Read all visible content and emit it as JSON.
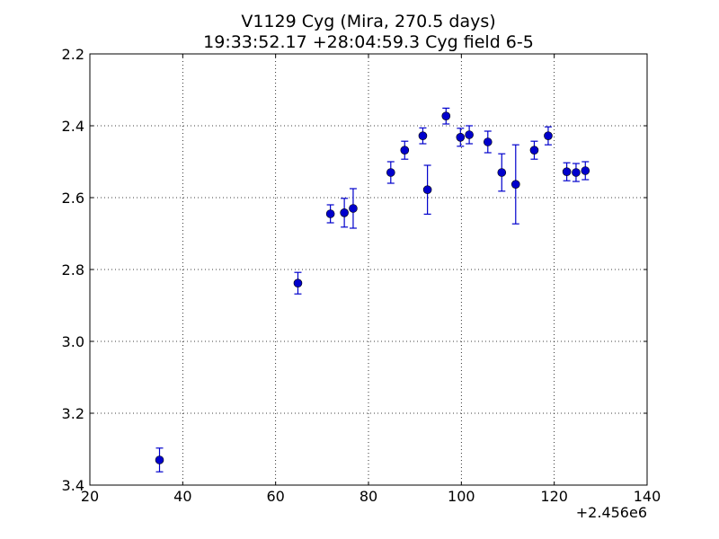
{
  "chart_data": {
    "type": "scatter",
    "title": "V1129 Cyg (Mira, 270.5 days)",
    "subtitle": "19:33:52.17 +28:04:59.3 Cyg field 6-5",
    "xlabel": "",
    "ylabel": "",
    "x_offset_label": "+2.456e6",
    "xlim": [
      20,
      140
    ],
    "ylim": [
      2.2,
      3.4
    ],
    "y_inverted": true,
    "grid": true,
    "x_ticks": [
      20,
      40,
      60,
      80,
      100,
      120,
      140
    ],
    "x_tick_labels": [
      "20",
      "40",
      "60",
      "80",
      "100",
      "120",
      "140"
    ],
    "y_ticks": [
      2.2,
      2.4,
      2.6,
      2.8,
      3.0,
      3.2,
      3.4
    ],
    "y_tick_labels": [
      "2.2",
      "2.4",
      "2.6",
      "2.8",
      "3.0",
      "3.2",
      "3.4"
    ],
    "colors": {
      "series": "#0000cc"
    },
    "points": [
      {
        "x": 35.0,
        "y": 3.33,
        "err": 0.033
      },
      {
        "x": 64.8,
        "y": 2.838,
        "err": 0.03
      },
      {
        "x": 71.8,
        "y": 2.645,
        "err": 0.025
      },
      {
        "x": 74.8,
        "y": 2.642,
        "err": 0.04
      },
      {
        "x": 76.7,
        "y": 2.63,
        "err": 0.055
      },
      {
        "x": 84.8,
        "y": 2.53,
        "err": 0.03
      },
      {
        "x": 87.8,
        "y": 2.468,
        "err": 0.025
      },
      {
        "x": 91.7,
        "y": 2.428,
        "err": 0.022
      },
      {
        "x": 92.7,
        "y": 2.578,
        "err": 0.068
      },
      {
        "x": 96.7,
        "y": 2.373,
        "err": 0.022
      },
      {
        "x": 99.8,
        "y": 2.432,
        "err": 0.025
      },
      {
        "x": 101.7,
        "y": 2.425,
        "err": 0.025
      },
      {
        "x": 105.7,
        "y": 2.445,
        "err": 0.03
      },
      {
        "x": 108.7,
        "y": 2.53,
        "err": 0.052
      },
      {
        "x": 111.7,
        "y": 2.563,
        "err": 0.11
      },
      {
        "x": 115.7,
        "y": 2.468,
        "err": 0.025
      },
      {
        "x": 118.7,
        "y": 2.428,
        "err": 0.025
      },
      {
        "x": 122.7,
        "y": 2.528,
        "err": 0.025
      },
      {
        "x": 124.7,
        "y": 2.53,
        "err": 0.025
      },
      {
        "x": 126.7,
        "y": 2.525,
        "err": 0.025
      }
    ]
  }
}
